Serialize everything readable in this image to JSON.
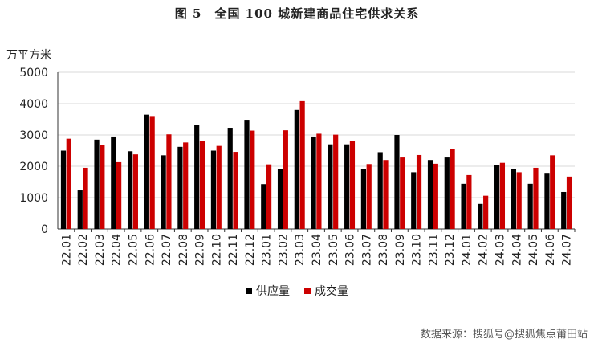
{
  "header": {
    "title": "图 5　全国 100 城新建商品住宅供求关系"
  },
  "footer": {
    "source": "数据来源：搜狐号@搜狐焦点莆田站"
  },
  "colors": {
    "supply": "#000000",
    "sales": "#cc0000"
  },
  "chart_data": {
    "type": "bar",
    "title": "图 5　全国 100 城新建商品住宅供求关系",
    "ylabel": "万平方米",
    "xlabel": "",
    "ylim": [
      0,
      5000
    ],
    "yticks": [
      0,
      1000,
      2000,
      3000,
      4000,
      5000
    ],
    "grid": true,
    "legend_position": "bottom",
    "categories": [
      "22.01",
      "22.02",
      "22.03",
      "22.04",
      "22.05",
      "22.06",
      "22.07",
      "22.08",
      "22.09",
      "22.10",
      "22.11",
      "22.12",
      "23.01",
      "23.02",
      "23.03",
      "23.04",
      "23.05",
      "23.06",
      "23.07",
      "23.08",
      "23.09",
      "23.10",
      "23.11",
      "23.12",
      "24.01",
      "24.02",
      "24.03",
      "24.04",
      "24.05",
      "24.06",
      "24.07"
    ],
    "series": [
      {
        "name": "供应量",
        "color": "#000000",
        "values": [
          2500,
          1230,
          2850,
          2950,
          2480,
          3650,
          2350,
          2620,
          3320,
          2500,
          3230,
          3460,
          1430,
          1900,
          3800,
          2950,
          2700,
          2700,
          1900,
          2450,
          3000,
          1810,
          2200,
          2280,
          1440,
          800,
          2030,
          1900,
          1440,
          1790,
          1180
        ]
      },
      {
        "name": "成交量",
        "color": "#cc0000",
        "values": [
          2880,
          1950,
          2680,
          2130,
          2380,
          3580,
          3020,
          2760,
          2820,
          2650,
          2460,
          3140,
          2060,
          3150,
          4080,
          3040,
          3010,
          2800,
          2070,
          2200,
          2280,
          2360,
          2080,
          2550,
          1720,
          1060,
          2110,
          1810,
          1950,
          2350,
          1670
        ]
      }
    ]
  }
}
